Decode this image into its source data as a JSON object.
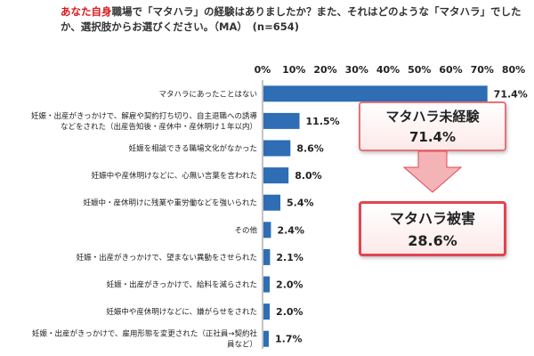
{
  "question": {
    "highlight": "あなた自身",
    "text": "職場で「マタハラ」の経験はありましたか？また、それはどのような「マタハラ」でしたか、選択肢からお選びください。（MA）",
    "n_label": "(n=654)"
  },
  "callouts": {
    "unexperienced": {
      "title": "マタハラ未経験",
      "value": "71.4%"
    },
    "harmed": {
      "title": "マタハラ被害",
      "value": "28.6%"
    }
  },
  "colors": {
    "bar": "#2f6db5",
    "callout_border": "#e0454f",
    "arrow_fill": "#f4b3b7",
    "highlight": "#d7191c"
  },
  "chart_data": {
    "type": "bar",
    "orientation": "horizontal",
    "xlim": [
      0,
      80
    ],
    "ticks": [
      "0%",
      "10%",
      "20%",
      "30%",
      "40%",
      "50%",
      "60%",
      "70%",
      "80%"
    ],
    "categories": [
      [
        "マタハラにあったことはない"
      ],
      [
        "妊娠・出産がきっかけで、解雇や契約打ち切り、自主退職への誘導",
        "などをされた（出産告知後・産休中・産休明け１年以内）"
      ],
      [
        "妊娠を相談できる職場文化がなかった"
      ],
      [
        "妊娠中や産休明けなどに、心無い言葉を言われた"
      ],
      [
        "妊娠中・産休明けに残業や重労働などを強いられた"
      ],
      [
        "その他"
      ],
      [
        "妊娠・出産がきっかけで、望まない異動をさせられた"
      ],
      [
        "妊娠・出産がきっかけで、給料を減らされた"
      ],
      [
        "妊娠中や産休明けなどに、嫌がらせをされた"
      ],
      [
        "妊娠・出産がきっかけで、雇用形態を変更された（正社員→契約社",
        "員など）"
      ]
    ],
    "values": [
      71.4,
      11.5,
      8.6,
      8.0,
      5.4,
      2.4,
      2.1,
      2.0,
      2.0,
      1.7
    ],
    "value_labels": [
      "71.4%",
      "11.5%",
      "8.6%",
      "8.0%",
      "5.4%",
      "2.4%",
      "2.1%",
      "2.0%",
      "2.0%",
      "1.7%"
    ],
    "grid": false,
    "legend": "none"
  }
}
